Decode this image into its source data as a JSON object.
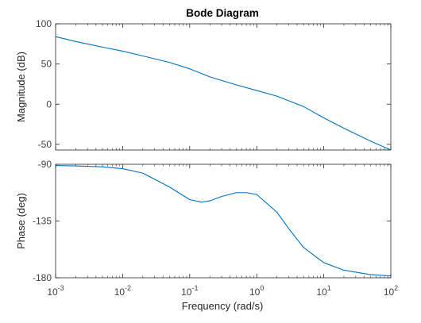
{
  "chart_data": {
    "type": "line",
    "title": "Bode Diagram",
    "xlabel": "Frequency  (rad/s)",
    "x_scale": "log",
    "xlim": [
      0.001,
      100
    ],
    "x_ticks": [
      0.001,
      0.01,
      0.1,
      1,
      10,
      100
    ],
    "x_tick_labels": [
      {
        "base": "10",
        "exp": "-3"
      },
      {
        "base": "10",
        "exp": "-2"
      },
      {
        "base": "10",
        "exp": "-1"
      },
      {
        "base": "10",
        "exp": "0"
      },
      {
        "base": "10",
        "exp": "1"
      },
      {
        "base": "10",
        "exp": "2"
      }
    ],
    "line_color": "#0072BD",
    "grid": false,
    "panels": [
      {
        "ylabel": "Magnitude (dB)",
        "ylim": [
          -57,
          100
        ],
        "y_ticks": [
          100,
          50,
          0,
          -50
        ],
        "y_tick_labels": [
          "100",
          "50",
          "0",
          "-50"
        ],
        "series": [
          {
            "x": [
              0.001,
              0.002,
              0.005,
              0.01,
              0.02,
              0.05,
              0.1,
              0.2,
              0.5,
              1,
              2,
              5,
              10,
              20,
              50,
              100
            ],
            "y": [
              84,
              78,
              71,
              66,
              60,
              52,
              44,
              34,
              24,
              17,
              10,
              -3,
              -17,
              -30,
              -46,
              -57
            ]
          }
        ]
      },
      {
        "ylabel": "Phase (deg)",
        "ylim": [
          -180,
          -90
        ],
        "y_ticks": [
          -90,
          -135,
          -180
        ],
        "y_tick_labels": [
          "-90",
          "-135",
          "-180"
        ],
        "series": [
          {
            "x": [
              0.001,
              0.002,
              0.005,
              0.01,
              0.02,
              0.05,
              0.1,
              0.15,
              0.2,
              0.3,
              0.5,
              0.7,
              1,
              2,
              3,
              5,
              10,
              20,
              50,
              100
            ],
            "y": [
              -91,
              -91.3,
              -92,
              -93.5,
              -97,
              -108,
              -118,
              -120,
              -119,
              -115.5,
              -112.5,
              -112.5,
              -114,
              -128,
              -141,
              -156,
              -168,
              -174,
              -177.5,
              -178.5
            ]
          }
        ]
      }
    ]
  }
}
